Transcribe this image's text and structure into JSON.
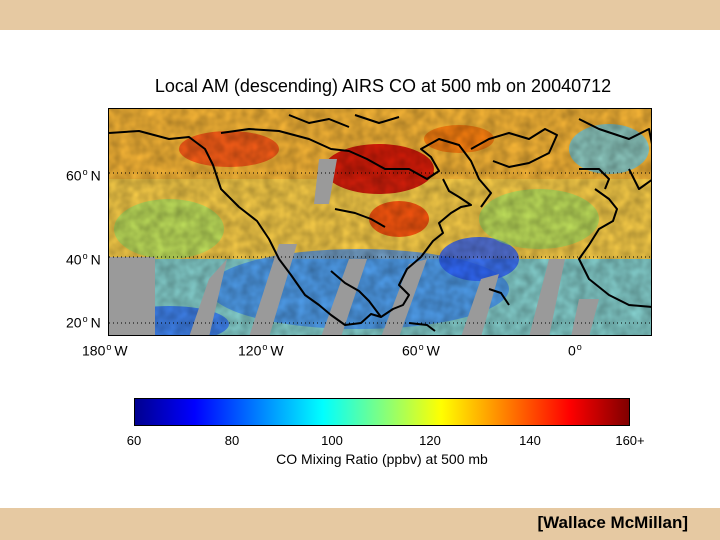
{
  "title": "Local AM (descending) AIRS CO at 500 mb on 20040712",
  "latitude_labels": [
    {
      "deg": "60",
      "hem": "N"
    },
    {
      "deg": "40",
      "hem": "N"
    },
    {
      "deg": "20",
      "hem": "N"
    }
  ],
  "longitude_labels": [
    {
      "deg": "180",
      "hem": "W"
    },
    {
      "deg": "120",
      "hem": "W"
    },
    {
      "deg": "60",
      "hem": "W"
    },
    {
      "deg": "0",
      "hem": ""
    }
  ],
  "colorbar": {
    "ticks": [
      "60",
      "80",
      "100",
      "120",
      "140",
      "160+"
    ],
    "label": "CO Mixing Ratio (ppbv) at 500 mb"
  },
  "credit": "[Wallace McMillan]",
  "colors": {
    "band": "#e6c9a2",
    "no_data": "#9a9a9a"
  }
}
